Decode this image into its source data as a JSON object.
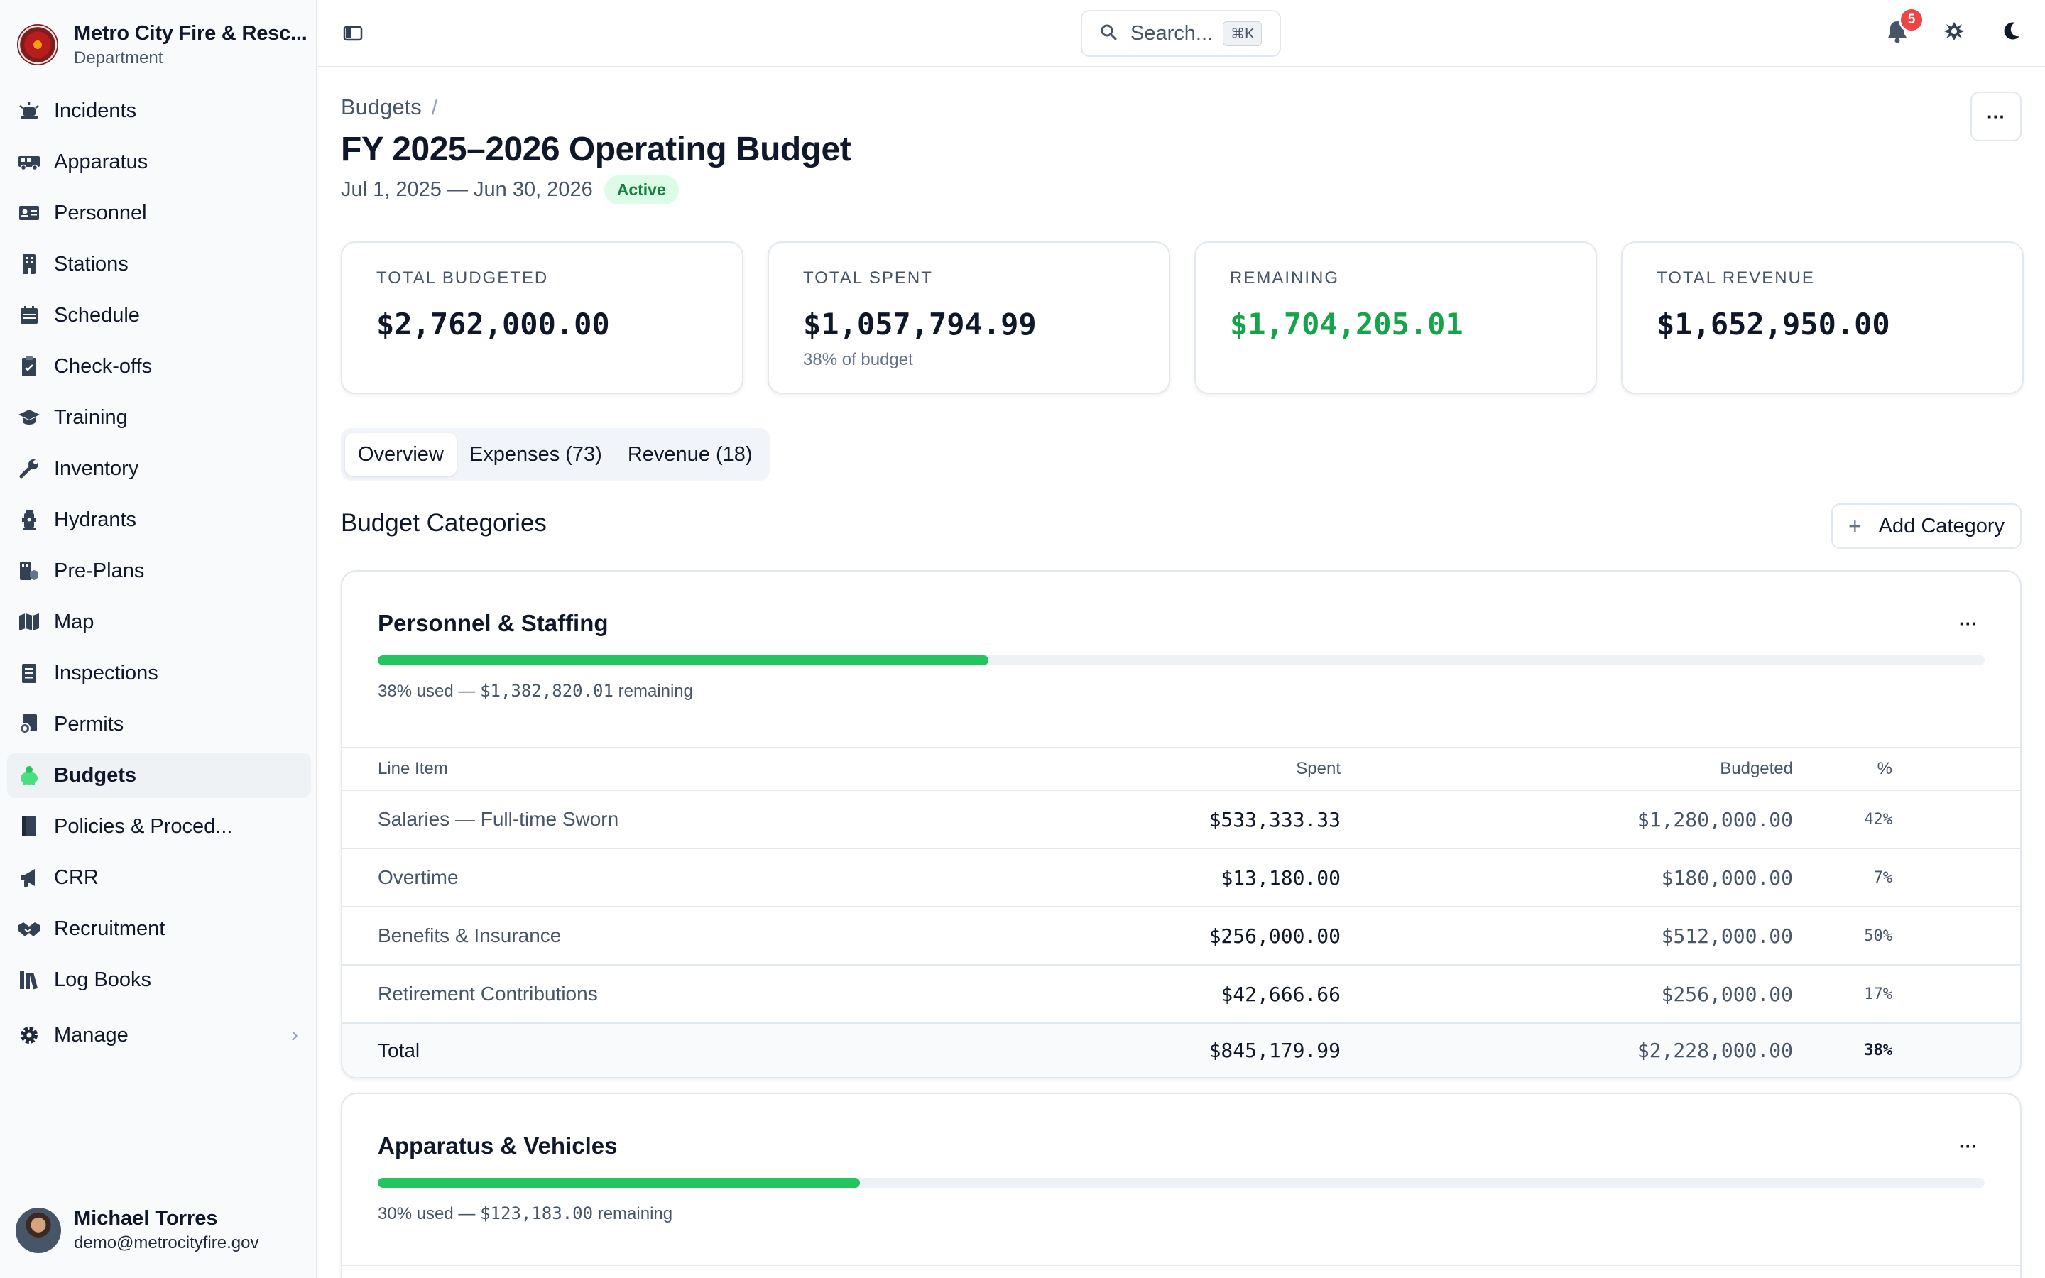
{
  "org": {
    "name": "Metro City Fire & Resc...",
    "subtitle": "Department"
  },
  "sidebar": {
    "items": [
      {
        "label": "Incidents",
        "icon": "siren-icon"
      },
      {
        "label": "Apparatus",
        "icon": "truck-icon"
      },
      {
        "label": "Personnel",
        "icon": "id-card-icon"
      },
      {
        "label": "Stations",
        "icon": "building-icon"
      },
      {
        "label": "Schedule",
        "icon": "calendar-icon"
      },
      {
        "label": "Check-offs",
        "icon": "clipboard-check-icon"
      },
      {
        "label": "Training",
        "icon": "graduation-cap-icon"
      },
      {
        "label": "Inventory",
        "icon": "wrench-icon"
      },
      {
        "label": "Hydrants",
        "icon": "hydrant-icon"
      },
      {
        "label": "Pre-Plans",
        "icon": "building-shield-icon"
      },
      {
        "label": "Map",
        "icon": "map-icon"
      },
      {
        "label": "Inspections",
        "icon": "checklist-icon"
      },
      {
        "label": "Permits",
        "icon": "certificate-icon"
      },
      {
        "label": "Budgets",
        "icon": "piggy-bank-icon",
        "active": true
      },
      {
        "label": "Policies & Proced...",
        "icon": "book-icon"
      },
      {
        "label": "CRR",
        "icon": "megaphone-icon"
      },
      {
        "label": "Recruitment",
        "icon": "handshake-icon"
      },
      {
        "label": "Log Books",
        "icon": "books-icon"
      },
      {
        "label": "Manage",
        "icon": "gear-icon"
      }
    ]
  },
  "user": {
    "name": "Michael Torres",
    "email": "demo@metrocityfire.gov"
  },
  "topbar": {
    "search_placeholder": "Search...",
    "search_shortcut": "⌘K",
    "notification_count": "5"
  },
  "page": {
    "breadcrumb": "Budgets",
    "breadcrumb_sep": "/",
    "title": "FY 2025–2026 Operating Budget",
    "date_range": "Jul 1, 2025 — Jun 30, 2026",
    "status": "Active"
  },
  "stats": [
    {
      "label": "TOTAL BUDGETED",
      "value": "$2,762,000.00",
      "note": ""
    },
    {
      "label": "TOTAL SPENT",
      "value": "$1,057,794.99",
      "note": "38% of budget"
    },
    {
      "label": "REMAINING",
      "value": "$1,704,205.01",
      "note": ""
    },
    {
      "label": "TOTAL REVENUE",
      "value": "$1,652,950.00",
      "note": ""
    }
  ],
  "tabs": [
    "Overview",
    "Expenses (73)",
    "Revenue (18)"
  ],
  "section": {
    "title": "Budget Categories",
    "add_label": "Add Category"
  },
  "columns": {
    "line_item": "Line Item",
    "spent": "Spent",
    "budgeted": "Budgeted",
    "pct": "%"
  },
  "categories": [
    {
      "name": "Personnel & Staffing",
      "used_fraction": 0.38,
      "used_text": "38% used — ",
      "remaining_amount": "$1,382,820.01",
      "remaining_text": " remaining",
      "rows": [
        {
          "item": "Salaries — Full-time Sworn",
          "spent": "$533,333.33",
          "budgeted": "$1,280,000.00",
          "pct": "42%"
        },
        {
          "item": "Overtime",
          "spent": "$13,180.00",
          "budgeted": "$180,000.00",
          "pct": "7%"
        },
        {
          "item": "Benefits & Insurance",
          "spent": "$256,000.00",
          "budgeted": "$512,000.00",
          "pct": "50%"
        },
        {
          "item": "Retirement Contributions",
          "spent": "$42,666.66",
          "budgeted": "$256,000.00",
          "pct": "17%"
        }
      ],
      "total": {
        "label": "Total",
        "spent": "$845,179.99",
        "budgeted": "$2,228,000.00",
        "pct": "38%"
      }
    },
    {
      "name": "Apparatus & Vehicles",
      "used_fraction": 0.3,
      "used_text": "30% used — ",
      "remaining_amount": "$123,183.00",
      "remaining_text": " remaining"
    }
  ],
  "colors": {
    "accent_green": "#22c55e",
    "remaining_green": "#16a34a",
    "badge_red": "#ef4444"
  }
}
